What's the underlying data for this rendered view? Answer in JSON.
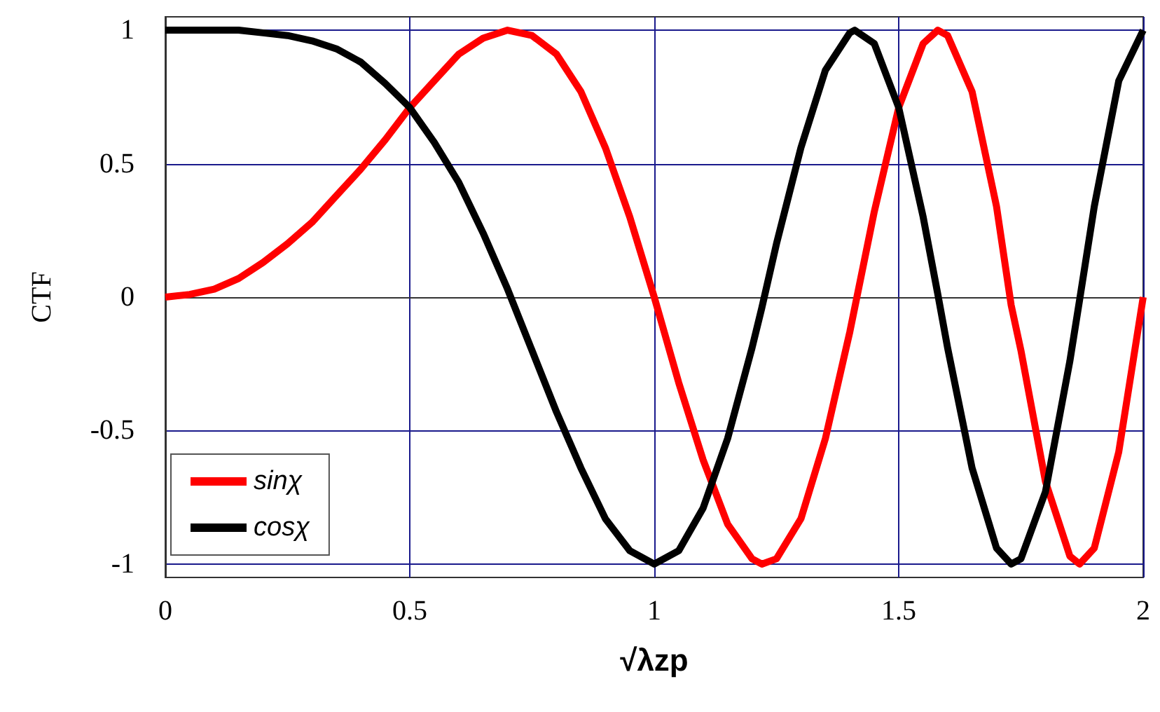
{
  "chart_data": {
    "type": "line",
    "xlabel": "√λzp",
    "ylabel": "CTF",
    "x": [
      0,
      0.05,
      0.1,
      0.15,
      0.2,
      0.25,
      0.3,
      0.35,
      0.4,
      0.45,
      0.5,
      0.55,
      0.6,
      0.65,
      0.7,
      0.75,
      0.8,
      0.85,
      0.9,
      0.95,
      1,
      1.05,
      1.1,
      1.15,
      1.2,
      1.22,
      1.25,
      1.3,
      1.35,
      1.4,
      1.41,
      1.45,
      1.5,
      1.55,
      1.58,
      1.6,
      1.65,
      1.7,
      1.73,
      1.75,
      1.8,
      1.85,
      1.87,
      1.9,
      1.95,
      2
    ],
    "series": [
      {
        "name": "sinχ",
        "color": "#ff0000",
        "values": [
          0,
          0.01,
          0.03,
          0.07,
          0.13,
          0.2,
          0.28,
          0.38,
          0.48,
          0.59,
          0.71,
          0.81,
          0.91,
          0.97,
          1,
          0.98,
          0.91,
          0.77,
          0.56,
          0.3,
          0,
          -0.32,
          -0.61,
          -0.85,
          -0.98,
          -1,
          -0.98,
          -0.83,
          -0.53,
          -0.13,
          -0.04,
          0.32,
          0.71,
          0.95,
          1,
          0.98,
          0.77,
          0.34,
          -0.03,
          -0.2,
          -0.69,
          -0.97,
          -1,
          -0.94,
          -0.58,
          0
        ]
      },
      {
        "name": "cosχ",
        "color": "#000000",
        "values": [
          1,
          1,
          1,
          1,
          0.99,
          0.98,
          0.96,
          0.93,
          0.88,
          0.8,
          0.71,
          0.58,
          0.43,
          0.24,
          0.03,
          -0.2,
          -0.43,
          -0.64,
          -0.83,
          -0.95,
          -1,
          -0.95,
          -0.79,
          -0.53,
          -0.19,
          -0.04,
          0.2,
          0.56,
          0.85,
          0.99,
          1,
          0.95,
          0.71,
          0.3,
          0.01,
          -0.19,
          -0.64,
          -0.94,
          -1,
          -0.98,
          -0.73,
          -0.24,
          -0.01,
          0.34,
          0.81,
          1
        ]
      }
    ],
    "xlim": [
      0,
      2
    ],
    "xticks": [
      0,
      0.5,
      1,
      1.5,
      2
    ],
    "ylim": [
      -1.05,
      1.05
    ],
    "yticks": [
      -1,
      -0.5,
      0,
      0.5,
      1
    ],
    "grid": true,
    "legend": "bottom left",
    "line_style": "solid"
  }
}
